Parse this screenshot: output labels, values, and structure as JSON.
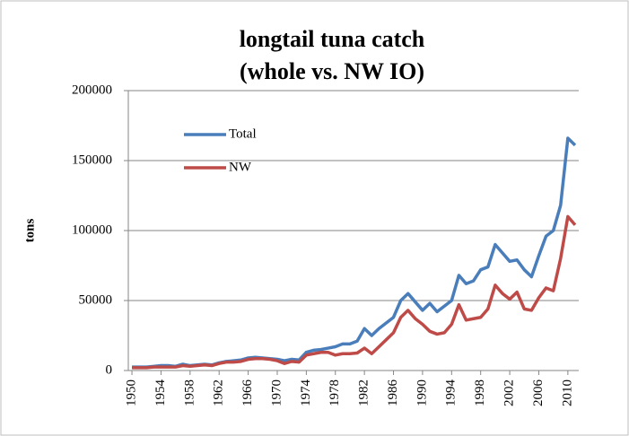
{
  "chart_data": {
    "type": "line",
    "title": [
      "longtail tuna catch",
      "(whole vs. NW IO)"
    ],
    "ylabel": "tons",
    "x": [
      1950,
      1951,
      1952,
      1953,
      1954,
      1955,
      1956,
      1957,
      1958,
      1959,
      1960,
      1961,
      1962,
      1963,
      1964,
      1965,
      1966,
      1967,
      1968,
      1969,
      1970,
      1971,
      1972,
      1973,
      1974,
      1975,
      1976,
      1977,
      1978,
      1979,
      1980,
      1981,
      1982,
      1983,
      1984,
      1985,
      1986,
      1987,
      1988,
      1989,
      1990,
      1991,
      1992,
      1993,
      1994,
      1995,
      1996,
      1997,
      1998,
      1999,
      2000,
      2001,
      2002,
      2003,
      2004,
      2005,
      2006,
      2007,
      2008,
      2009,
      2010,
      2011
    ],
    "series": [
      {
        "name": "Total",
        "color": "#4a7ebb",
        "values": [
          2500,
          2500,
          2500,
          3000,
          3500,
          3500,
          3000,
          4500,
          3500,
          4000,
          4500,
          4000,
          5500,
          6500,
          7000,
          7500,
          9000,
          9500,
          9000,
          8500,
          8000,
          7000,
          8000,
          7500,
          13000,
          14500,
          15000,
          16000,
          17000,
          19000,
          19000,
          21000,
          30000,
          25000,
          30000,
          34000,
          38000,
          50000,
          55000,
          49000,
          43000,
          48000,
          42000,
          46000,
          50000,
          68000,
          62000,
          64000,
          72000,
          74000,
          90000,
          84000,
          78000,
          79000,
          72000,
          67000,
          82000,
          96000,
          100000,
          118000,
          166000,
          161000
        ]
      },
      {
        "name": "NW",
        "color": "#be4b48",
        "values": [
          2000,
          2000,
          2000,
          2500,
          2500,
          2500,
          2500,
          3500,
          3000,
          3500,
          4000,
          3500,
          5000,
          6000,
          6000,
          6500,
          8000,
          8500,
          8500,
          8000,
          7000,
          5000,
          6500,
          6000,
          11000,
          12000,
          13000,
          13000,
          11000,
          12000,
          12000,
          12500,
          16000,
          12000,
          17000,
          22000,
          27000,
          38000,
          43000,
          37000,
          33000,
          28000,
          26000,
          27000,
          33000,
          47000,
          36000,
          37000,
          38000,
          44000,
          61000,
          55000,
          51000,
          56000,
          44000,
          43000,
          52000,
          59000,
          57000,
          80000,
          110000,
          104000
        ]
      }
    ],
    "xlim": [
      1949.5,
      2011.5
    ],
    "xticks": [
      1950,
      1954,
      1958,
      1962,
      1966,
      1970,
      1974,
      1978,
      1982,
      1986,
      1990,
      1994,
      1998,
      2002,
      2006,
      2010
    ],
    "ylim": [
      0,
      200000
    ],
    "yticks": [
      0,
      50000,
      100000,
      150000,
      200000
    ],
    "grid": true
  }
}
